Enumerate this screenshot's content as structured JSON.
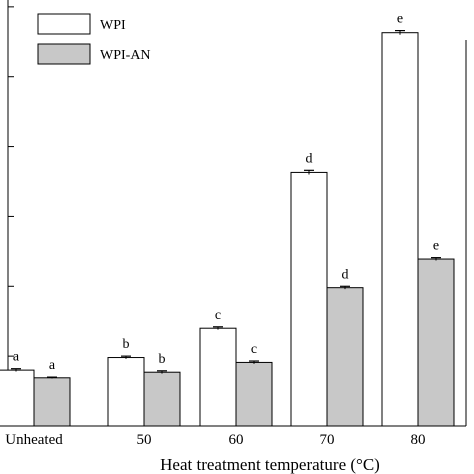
{
  "chart_data": {
    "type": "bar",
    "title": "",
    "xlabel": "Heat treatment temperature (°C)",
    "ylabel": "",
    "categories": [
      "Unheated",
      "50",
      "60",
      "70",
      "80"
    ],
    "ylim": [
      0,
      7
    ],
    "y_ticks_without_labels": [
      1,
      2,
      3,
      4,
      5,
      6
    ],
    "grid": false,
    "legend_placement": "top-left",
    "series": [
      {
        "name": "WPI",
        "fill_color": "#ffffff",
        "values": [
          0.8,
          0.98,
          1.4,
          3.63,
          5.63
        ],
        "errors": [
          0.02,
          0.02,
          0.02,
          0.03,
          0.03
        ],
        "letters": [
          "a",
          "b",
          "c",
          "d",
          "e"
        ]
      },
      {
        "name": "WPI-AN",
        "fill_color": "#c8c8c8",
        "values": [
          0.69,
          0.77,
          0.91,
          1.98,
          2.39
        ],
        "errors": [
          0.01,
          0.02,
          0.02,
          0.02,
          0.02
        ],
        "letters": [
          "a",
          "b",
          "c",
          "d",
          "e"
        ]
      }
    ]
  }
}
